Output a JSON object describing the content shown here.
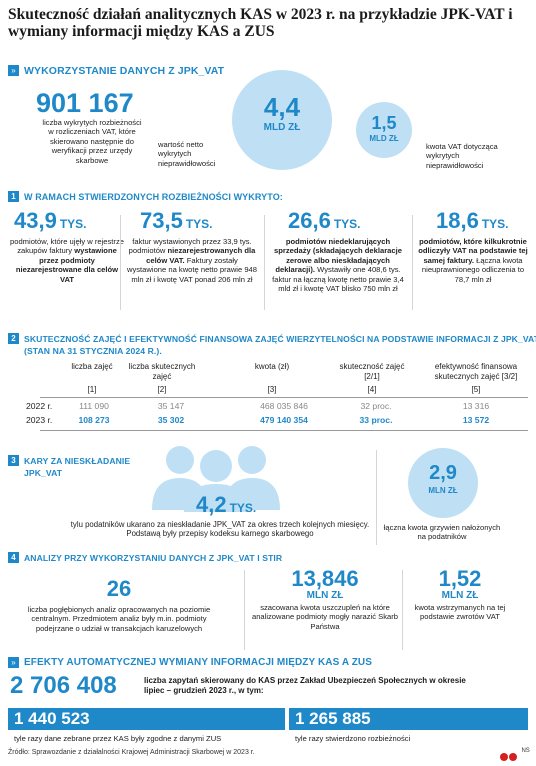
{
  "title": "Skuteczność działań analitycznych KAS w 2023 r. na przykładzie JPK-VAT i wymiany informacji między KAS a ZUS",
  "colors": {
    "accent": "#1f88c8",
    "light": "#bfe0f4",
    "bar": "#1f88c8"
  },
  "section0": {
    "heading": "WYKORZYSTANIE DANYCH Z JPK_VAT",
    "big_number": "901 167",
    "big_desc": "liczba wykrytych rozbieżności w rozliczeniach VAT, które skierowano następnie do weryfikacji przez urzędy skarbowe",
    "circle1_value": "4,4",
    "circle1_unit": "MLD ZŁ",
    "circle1_desc": "wartość netto wykrytych nieprawidłowości",
    "circle2_value": "1,5",
    "circle2_unit": "MLD ZŁ",
    "circle2_desc": "kwota VAT dotycząca wykrytych nieprawidłowości"
  },
  "section1": {
    "badge": "1",
    "heading": "W ramach stwierdzonych rozbieżności wykryto:",
    "items": [
      {
        "value": "43,9",
        "unit": "TYS.",
        "desc": "podmiotów, które ujęły w rejestrze zakupów faktury",
        "desc_bold": "wystawione przez podmioty niezarejestrowane dla celów VAT"
      },
      {
        "value": "73,5",
        "unit": "TYS.",
        "desc": "faktur wystawionych przez 33,9 tys. podmiotów",
        "desc_bold": "niezarejestrowanych dla celów VAT.",
        "desc2": "Faktury zostały wystawione na kwotę netto prawie 948 mln zł i kwotę VAT ponad 206 mln zł"
      },
      {
        "value": "26,6",
        "unit": "TYS.",
        "desc_bold": "podmiotów niedeklarujących sprzedaży (składających deklaracje zerowe albo nieskładających deklaracji).",
        "desc2": "Wystawiły one 408,6 tys. faktur na łączną kwotę netto prawie 3,4 mld zł i kwotę VAT blisko 750 mln zł"
      },
      {
        "value": "18,6",
        "unit": "TYS.",
        "desc_bold": "podmiotów, które kilkukrotnie odliczyły VAT na podstawie tej samej faktury.",
        "desc2": "Łączna kwota nieuprawnionego odliczenia to 78,7 mln zł"
      }
    ]
  },
  "section2": {
    "badge": "2",
    "heading": "Skuteczność zajęć i efektywność finansowa zajęć wierzytelności na podstawie informacji z JPK_VAT",
    "subheading": "(stan na 31 stycznia 2024 r.).",
    "columns": [
      "liczba zajęć",
      "liczba skutecznych zajęć",
      "kwota (zł)",
      "skuteczność zajęć [2/1]",
      "efektywność finansowa skutecznych zajęć [3/2]"
    ],
    "col_index": [
      "[1]",
      "[2]",
      "[3]",
      "[4]",
      "[5]"
    ],
    "rows": [
      {
        "year": "2022 r.",
        "cells": [
          "111 090",
          "35 147",
          "468 035 846",
          "32 proc.",
          "13 316"
        ]
      },
      {
        "year": "2023 r.",
        "cells": [
          "108 273",
          "35 302",
          "479 140 354",
          "33 proc.",
          "13 572"
        ]
      }
    ]
  },
  "section3": {
    "badge": "3",
    "heading": "Kary za nieskładanie JPK_VAT",
    "value": "4,2",
    "unit": "TYS.",
    "desc": "tylu podatników ukarano za nieskładanie JPK_VAT za okres trzech kolejnych miesięcy. Podstawą były przepisy kodeksu karnego skarbowego",
    "circle_value": "2,9",
    "circle_unit": "MLN ZŁ",
    "circle_desc": "łączna kwota grzywien nałożonych na podatników"
  },
  "section4": {
    "badge": "4",
    "heading": "Analizy przy wykorzystaniu danych z JPK_VAT i STIR",
    "items": [
      {
        "value": "26",
        "unit": "",
        "desc": "liczba pogłębionych analiz opracowanych na poziomie centralnym. Przedmiotem analiz były m.in. podmioty podejrzane o udział w transakcjach karuzelowych"
      },
      {
        "value": "13,846",
        "unit": "MLN ZŁ",
        "desc": "szacowana kwota uszczupleń na które analizowane podmioty mogły narazić Skarb Państwa"
      },
      {
        "value": "1,52",
        "unit": "MLN ZŁ",
        "desc": "kwota wstrzymanych na tej podstawie zwrotów VAT"
      }
    ]
  },
  "section5": {
    "heading": "EFEKTY AUTOMATYCZNEJ WYMIANY INFORMACJI MIĘDZY KAS A ZUS",
    "big_number": "2 706 408",
    "big_desc": "liczba zapytań skierowany do KAS przez Zakład Ubezpieczeń Społecznych w okresie lipiec – grudzień 2023 r., w tym:",
    "bar1_value": "1 440 523",
    "bar1_desc": "tyle razy dane zebrane przez KAS były zgodne z danymi ZUS",
    "bar2_value": "1 265 885",
    "bar2_desc": "tyle razy stwierdzono rozbieżności",
    "bar1_share": 0.532
  },
  "footer": {
    "source": "Źródło: Sprawozdanie z działalności Krajowej Administracji Skarbowej w 2023 r.",
    "logo_text": "NS"
  }
}
